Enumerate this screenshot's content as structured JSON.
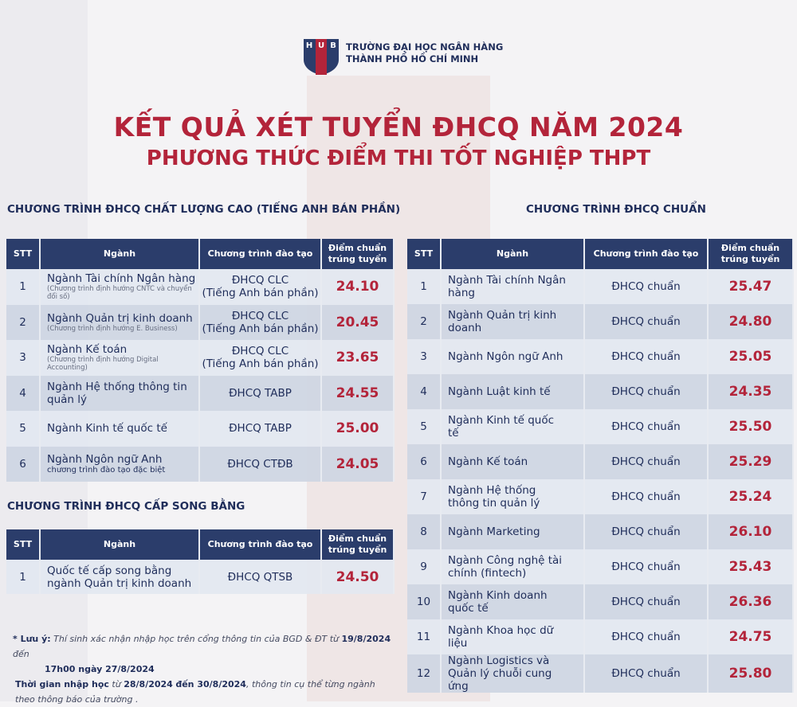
{
  "header": {
    "logo_letters": "HUB",
    "university_line1": "TRƯỜNG ĐẠI HỌC NGÂN HÀNG",
    "university_line2": "THÀNH PHỐ HỒ CHÍ MINH"
  },
  "title": "KẾT QUẢ XÉT TUYỂN ĐHCQ NĂM 2024",
  "subtitle": "PHƯƠNG THỨC ĐIỂM THI TỐT NGHIỆP THPT",
  "colors": {
    "accent": "#b3243a",
    "navy": "#2b3d6b"
  },
  "columns": {
    "stt": "STT",
    "major": "Ngành",
    "program": "Chương trình đào tạo",
    "score_line1": "Điểm chuẩn",
    "score_line2": "trúng tuyển"
  },
  "clc": {
    "title": "CHƯƠNG TRÌNH ĐHCQ CHẤT LƯỢNG CAO (TIẾNG ANH BÁN PHẦN)",
    "rows": [
      {
        "stt": "1",
        "major": "Ngành Tài chính Ngân hàng",
        "note": "(Chương trình định hướng CNTC và chuyển đổi số)",
        "program": "ĐHCQ CLC",
        "program2": "(Tiếng Anh bán phần)",
        "score": "24.10"
      },
      {
        "stt": "2",
        "major": "Ngành Quản trị kinh doanh",
        "note": "(Chương trình định hướng E. Business)",
        "program": "ĐHCQ CLC",
        "program2": "(Tiếng Anh bán phần)",
        "score": "20.45"
      },
      {
        "stt": "3",
        "major": "Ngành Kế toán",
        "note": "(Chương trình định hướng Digital Accounting)",
        "program": "ĐHCQ CLC",
        "program2": "(Tiếng Anh bán phần)",
        "score": "23.65"
      },
      {
        "stt": "4",
        "major": "Ngành Hệ thống thông tin quản lý",
        "program": "ĐHCQ TABP",
        "score": "24.55"
      },
      {
        "stt": "5",
        "major": "Ngành Kinh tế quốc tế",
        "program": "ĐHCQ TABP",
        "score": "25.00"
      },
      {
        "stt": "6",
        "major": "Ngành Ngôn ngữ Anh",
        "note2": "chương trình đào tạo đặc biệt",
        "program": "ĐHCQ CTĐB",
        "score": "24.05"
      }
    ]
  },
  "dual": {
    "title": "CHƯƠNG TRÌNH ĐHCQ CẤP SONG BẰNG",
    "rows": [
      {
        "stt": "1",
        "major": "Quốc tế cấp song bằng ngành Quản trị kinh doanh",
        "program": "ĐHCQ QTSB",
        "score": "24.50"
      }
    ]
  },
  "standard": {
    "title": "CHƯƠNG TRÌNH ĐHCQ CHUẨN",
    "rows": [
      {
        "stt": "1",
        "major": "Ngành Tài chính Ngân hàng",
        "program": "ĐHCQ chuẩn",
        "score": "25.47"
      },
      {
        "stt": "2",
        "major": "Ngành Quản trị kinh doanh",
        "program": "ĐHCQ chuẩn",
        "score": "24.80"
      },
      {
        "stt": "3",
        "major": "Ngành Ngôn ngữ Anh",
        "program": "ĐHCQ chuẩn",
        "score": "25.05"
      },
      {
        "stt": "4",
        "major": "Ngành Luật kinh tế",
        "program": "ĐHCQ chuẩn",
        "score": "24.35"
      },
      {
        "stt": "5",
        "major": "Ngành Kinh tế quốc tế",
        "program": "ĐHCQ chuẩn",
        "score": "25.50"
      },
      {
        "stt": "6",
        "major": "Ngành Kế toán",
        "program": "ĐHCQ chuẩn",
        "score": "25.29"
      },
      {
        "stt": "7",
        "major": "Ngành Hệ thống thông tin quản lý",
        "program": "ĐHCQ chuẩn",
        "score": "25.24"
      },
      {
        "stt": "8",
        "major": "Ngành Marketing",
        "program": "ĐHCQ chuẩn",
        "score": "26.10"
      },
      {
        "stt": "9",
        "major": "Ngành Công nghệ tài chính (fintech)",
        "program": "ĐHCQ chuẩn",
        "score": "25.43"
      },
      {
        "stt": "10",
        "major": "Ngành Kinh doanh quốc tế",
        "program": "ĐHCQ chuẩn",
        "score": "26.36"
      },
      {
        "stt": "11",
        "major": "Ngành Khoa học dữ liệu",
        "program": "ĐHCQ chuẩn",
        "score": "24.75"
      },
      {
        "stt": "12",
        "major": "Ngành Logistics và Quản lý chuỗi cung ứng",
        "program": "ĐHCQ chuẩn",
        "score": "25.80"
      }
    ]
  },
  "note": {
    "label": "* Lưu ý:",
    "text1": "Thí sinh xác nhận nhập học trên cổng thông tin của BGD & ĐT từ",
    "date1": "19/8/2024",
    "text2": "đến",
    "date2": "17h00 ngày 27/8/2024",
    "label2": "Thời gian nhập học",
    "text3": "từ",
    "date3": "28/8/2024",
    "text4": "đến 30/8/2024",
    "text5": ", thông tin cụ thể từng ngành theo thông báo của trường ."
  }
}
